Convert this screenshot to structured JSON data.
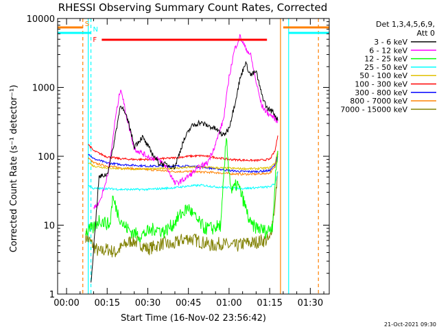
{
  "chart_data": {
    "type": "line",
    "title": "RHESSI Observing Summary Count Rates, Corrected",
    "xlabel": "Start Time (16-Nov-02 23:56:42)",
    "ylabel": "Corrected Count Rate (s⁻¹ detector⁻¹)",
    "yscale": "log",
    "ylim": [
      1,
      10000
    ],
    "xlim": [
      "23:56:42",
      "01:37:00"
    ],
    "x_ticks": [
      "00:00",
      "00:15",
      "00:30",
      "00:45",
      "01:00",
      "01:15",
      "01:30"
    ],
    "y_ticks": [
      "1",
      "10",
      "100",
      "1000",
      "10000"
    ],
    "grid": false,
    "legend_position": "top-right",
    "legend_header": [
      "Det 1,3,4,5,6,9,",
      "Att 0"
    ],
    "footer_date": "21-Oct-2021 09:30",
    "series": [
      {
        "name": "3 - 6 keV",
        "color": "#000000",
        "x": [
          "00:09",
          "00:12",
          "00:15",
          "00:17",
          "00:20",
          "00:23",
          "00:25",
          "00:28",
          "00:31",
          "00:34",
          "00:37",
          "00:40",
          "00:43",
          "00:46",
          "00:49",
          "00:52",
          "00:55",
          "00:58",
          "01:00",
          "01:02",
          "01:04",
          "01:06",
          "01:08",
          "01:10",
          "01:12",
          "01:14",
          "01:16",
          "01:17",
          "01:18"
        ],
        "y": [
          1.4,
          50,
          55,
          120,
          580,
          300,
          140,
          190,
          120,
          80,
          75,
          70,
          160,
          270,
          310,
          280,
          250,
          200,
          260,
          550,
          1300,
          2300,
          1500,
          1700,
          800,
          500,
          450,
          400,
          330
        ]
      },
      {
        "name": "6 - 12 keV",
        "color": "#ff00ff",
        "x": [
          "00:10",
          "00:12",
          "00:14",
          "00:16",
          "00:18",
          "00:20",
          "00:22",
          "00:25",
          "00:28",
          "00:31",
          "00:34",
          "00:37",
          "00:40",
          "00:43",
          "00:46",
          "00:49",
          "00:52",
          "00:55",
          "00:58",
          "01:00",
          "01:02",
          "01:04",
          "01:06",
          "01:08",
          "01:10",
          "01:12",
          "01:14",
          "01:16",
          "01:18"
        ],
        "y": [
          18,
          21,
          35,
          80,
          350,
          1000,
          400,
          130,
          110,
          95,
          90,
          70,
          40,
          45,
          55,
          70,
          80,
          150,
          350,
          1400,
          3500,
          5500,
          3800,
          2900,
          1200,
          550,
          430,
          380,
          320
        ]
      },
      {
        "name": "12 - 25 keV",
        "color": "#00ff00",
        "x": [
          "00:07",
          "00:10",
          "00:12",
          "00:14",
          "00:16",
          "00:17",
          "00:19",
          "00:21",
          "00:24",
          "00:27",
          "00:30",
          "00:33",
          "00:36",
          "00:39",
          "00:42",
          "00:45",
          "00:48",
          "00:51",
          "00:54",
          "00:57",
          "00:59",
          "01:00",
          "01:01",
          "01:03",
          "01:05",
          "01:08",
          "01:11",
          "01:14",
          "01:16",
          "01:17",
          "01:18"
        ],
        "y": [
          8,
          9,
          12,
          11,
          10,
          25,
          15,
          10,
          8,
          7,
          8,
          9,
          8,
          10,
          14,
          18,
          12,
          9,
          9,
          10,
          200,
          60,
          30,
          40,
          25,
          10,
          9,
          8,
          10,
          40,
          120
        ]
      },
      {
        "name": "25 - 50 keV",
        "color": "#00ffff",
        "x": [
          "00:08",
          "00:10",
          "00:15",
          "00:20",
          "00:25",
          "00:30",
          "00:35",
          "00:40",
          "00:45",
          "00:50",
          "00:55",
          "01:00",
          "01:05",
          "01:10",
          "01:15",
          "01:17",
          "01:18"
        ],
        "y": [
          38,
          34,
          34,
          33,
          33,
          33,
          34,
          35,
          37,
          38,
          36,
          35,
          34,
          35,
          36,
          40,
          60
        ]
      },
      {
        "name": "50 - 100 keV",
        "color": "#e0c000",
        "x": [
          "00:08",
          "00:10",
          "00:15",
          "00:20",
          "00:25",
          "00:30",
          "00:35",
          "00:40",
          "00:45",
          "00:50",
          "00:55",
          "01:00",
          "01:05",
          "01:10",
          "01:15",
          "01:17",
          "01:18"
        ],
        "y": [
          82,
          72,
          68,
          66,
          65,
          66,
          66,
          67,
          69,
          70,
          68,
          67,
          66,
          66,
          68,
          80,
          120
        ]
      },
      {
        "name": "100 - 300 keV",
        "color": "#ff0000",
        "x": [
          "00:08",
          "00:10",
          "00:15",
          "00:20",
          "00:25",
          "00:30",
          "00:35",
          "00:40",
          "00:45",
          "00:50",
          "00:55",
          "01:00",
          "01:05",
          "01:10",
          "01:15",
          "01:17",
          "01:18"
        ],
        "y": [
          150,
          120,
          98,
          92,
          90,
          90,
          92,
          95,
          100,
          102,
          96,
          90,
          88,
          87,
          90,
          120,
          200
        ]
      },
      {
        "name": "300 - 800 keV",
        "color": "#0000ff",
        "x": [
          "00:08",
          "00:10",
          "00:15",
          "00:20",
          "00:25",
          "00:30",
          "00:35",
          "00:40",
          "00:45",
          "00:50",
          "00:55",
          "01:00",
          "01:05",
          "01:10",
          "01:15",
          "01:17",
          "01:18"
        ],
        "y": [
          110,
          92,
          80,
          76,
          74,
          72,
          72,
          72,
          72,
          70,
          66,
          62,
          60,
          60,
          62,
          75,
          110
        ]
      },
      {
        "name": "800 - 7000 keV",
        "color": "#ff8000",
        "x": [
          "00:08",
          "00:10",
          "00:15",
          "00:20",
          "00:25",
          "00:30",
          "00:35",
          "00:40",
          "00:45",
          "00:50",
          "00:55",
          "01:00",
          "01:05",
          "01:10",
          "01:15",
          "01:17",
          "01:18"
        ],
        "y": [
          95,
          80,
          72,
          68,
          66,
          64,
          62,
          60,
          60,
          59,
          58,
          56,
          55,
          55,
          57,
          70,
          100
        ]
      },
      {
        "name": "7000 - 15000 keV",
        "color": "#808000",
        "x": [
          "00:07",
          "00:10",
          "00:12",
          "00:15",
          "00:18",
          "00:21",
          "00:24",
          "00:27",
          "00:30",
          "00:33",
          "00:36",
          "00:39",
          "00:42",
          "00:45",
          "00:48",
          "00:51",
          "00:54",
          "00:57",
          "01:00",
          "01:03",
          "01:06",
          "01:09",
          "01:12",
          "01:15",
          "01:17",
          "01:18"
        ],
        "y": [
          7,
          5,
          4,
          4.5,
          4,
          5,
          6,
          5.5,
          4.5,
          5,
          5.5,
          5,
          6,
          6.5,
          6,
          5.5,
          5,
          5.5,
          5,
          5,
          5.5,
          5.5,
          6,
          6,
          20,
          60
        ]
      }
    ],
    "attenuator_levels": [
      {
        "label": "S",
        "color": "#ff8000",
        "periods": [
          [
            "23:56:42",
            "00:06"
          ],
          [
            "01:20",
            "01:37"
          ]
        ]
      },
      {
        "label": "N",
        "color": "#00ffff",
        "periods": [
          [
            "23:56:42",
            "00:09"
          ],
          [
            "01:22",
            "01:37"
          ]
        ]
      }
    ],
    "flare_flag": {
      "label": "F",
      "color": "#ff0000",
      "period": [
        "00:13",
        "01:14"
      ]
    },
    "event_lines": [
      {
        "color": "#ff8000",
        "style": "dashed",
        "time": "00:06"
      },
      {
        "color": "#00ffff",
        "style": "dashed",
        "time": "00:09"
      },
      {
        "color": "#ff8000",
        "style": "solid",
        "time": "01:19"
      },
      {
        "color": "#00ffff",
        "style": "solid",
        "time": "01:22"
      },
      {
        "color": "#ff8000",
        "style": "dashed",
        "time": "01:33"
      },
      {
        "color": "#00ffff",
        "style": "solid",
        "time": "00:08"
      }
    ]
  }
}
